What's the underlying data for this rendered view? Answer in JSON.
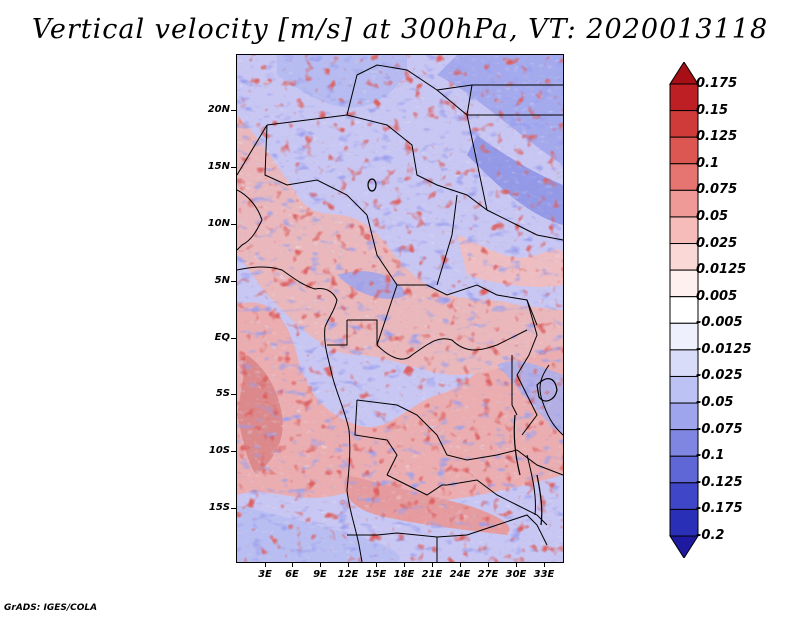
{
  "title": "Vertical velocity [m/s] at 300hPa, VT: 2020013118",
  "credit": "GrADS: IGES/COLA",
  "map": {
    "lat_labels": [
      "20N",
      "15N",
      "10N",
      "5N",
      "EQ",
      "5S",
      "10S",
      "15S"
    ],
    "lon_labels": [
      "3E",
      "6E",
      "9E",
      "12E",
      "15E",
      "18E",
      "21E",
      "24E",
      "27E",
      "30E",
      "33E"
    ]
  },
  "colorbar": {
    "labels": [
      "0.175",
      "0.15",
      "0.125",
      "0.1",
      "0.075",
      "0.05",
      "0.025",
      "0.0125",
      "0.005",
      "-0.005",
      "-0.0125",
      "-0.025",
      "-0.05",
      "-0.075",
      "-0.1",
      "-0.125",
      "-0.175",
      "-0.2"
    ],
    "colors": [
      "#a50f15",
      "#bd1f24",
      "#cf3b38",
      "#dc5652",
      "#e67470",
      "#ef9a96",
      "#f5bcb9",
      "#fad8d6",
      "#fdf0ef",
      "#ffffff",
      "#eef0fd",
      "#d8dcf9",
      "#bcc2f3",
      "#9ea5ec",
      "#7f86e2",
      "#5f66d6",
      "#4046c8",
      "#2a2fb8",
      "#1e1aa0"
    ]
  }
}
